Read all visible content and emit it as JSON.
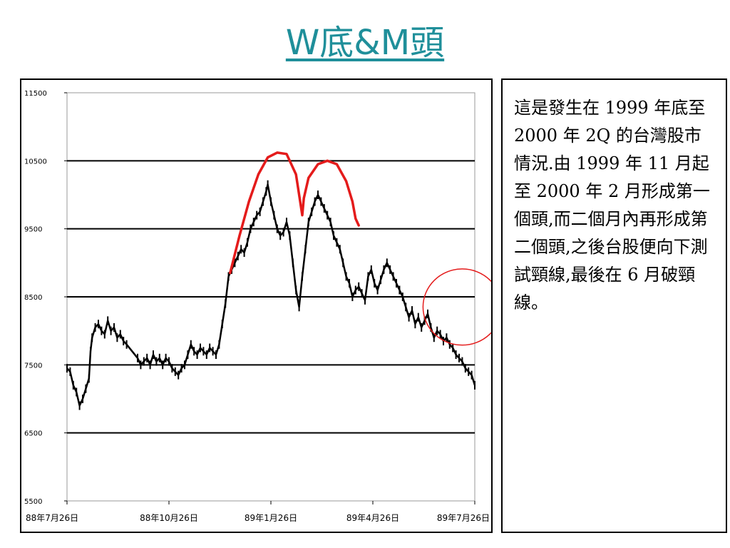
{
  "slide": {
    "title": "W底&M頭"
  },
  "description": {
    "text": "這是發生在 1999 年底至 2000 年 2Q 的台灣股市情況.由 1999 年 11 月起至 2000 年 2 月形成第一個頭,而二個月內再形成第二個頭,之後台股便向下測試頸線,最後在 6 月破頸線。"
  },
  "chart_data": {
    "type": "line",
    "title": "",
    "xlabel": "",
    "ylabel": "",
    "ylim": [
      5500,
      11500
    ],
    "yticks": [
      5500,
      6500,
      7500,
      8500,
      9500,
      10500,
      11500
    ],
    "ytick_labels": [
      "5500",
      "6500",
      "7500",
      "8500",
      "9500",
      "10500",
      "11500"
    ],
    "xticks": [
      0,
      65,
      130,
      195,
      260
    ],
    "xtick_labels": [
      "88年7月26日",
      "88年10月26日",
      "89年1月26日",
      "89年4月26日",
      "89年7月26日"
    ],
    "grid": "horizontal",
    "series": [
      {
        "name": "",
        "color": "#000000",
        "points": [
          [
            0,
            7450
          ],
          [
            2,
            7400
          ],
          [
            4,
            7200
          ],
          [
            6,
            7100
          ],
          [
            8,
            6900
          ],
          [
            10,
            7000
          ],
          [
            12,
            7150
          ],
          [
            14,
            7300
          ],
          [
            15,
            7700
          ],
          [
            16,
            7900
          ],
          [
            18,
            8050
          ],
          [
            20,
            8100
          ],
          [
            22,
            8000
          ],
          [
            24,
            7950
          ],
          [
            26,
            8150
          ],
          [
            28,
            8000
          ],
          [
            30,
            8050
          ],
          [
            32,
            7900
          ],
          [
            34,
            7950
          ],
          [
            36,
            7850
          ],
          [
            38,
            7800
          ],
          [
            45,
            7600
          ],
          [
            47,
            7500
          ],
          [
            49,
            7550
          ],
          [
            51,
            7600
          ],
          [
            53,
            7500
          ],
          [
            55,
            7650
          ],
          [
            57,
            7550
          ],
          [
            59,
            7600
          ],
          [
            61,
            7500
          ],
          [
            63,
            7600
          ],
          [
            65,
            7550
          ],
          [
            67,
            7450
          ],
          [
            69,
            7400
          ],
          [
            71,
            7350
          ],
          [
            73,
            7450
          ],
          [
            75,
            7500
          ],
          [
            77,
            7650
          ],
          [
            79,
            7800
          ],
          [
            81,
            7700
          ],
          [
            83,
            7650
          ],
          [
            85,
            7750
          ],
          [
            87,
            7700
          ],
          [
            89,
            7650
          ],
          [
            91,
            7750
          ],
          [
            93,
            7700
          ],
          [
            95,
            7650
          ],
          [
            97,
            7800
          ],
          [
            99,
            8100
          ],
          [
            101,
            8400
          ],
          [
            103,
            8800
          ],
          [
            105,
            8900
          ],
          [
            107,
            9000
          ],
          [
            109,
            9100
          ],
          [
            111,
            9200
          ],
          [
            113,
            9150
          ],
          [
            115,
            9300
          ],
          [
            117,
            9500
          ],
          [
            119,
            9600
          ],
          [
            121,
            9700
          ],
          [
            123,
            9750
          ],
          [
            125,
            9900
          ],
          [
            127,
            10050
          ],
          [
            128,
            10150
          ],
          [
            130,
            9900
          ],
          [
            132,
            9700
          ],
          [
            134,
            9500
          ],
          [
            136,
            9400
          ],
          [
            138,
            9450
          ],
          [
            140,
            9600
          ],
          [
            142,
            9400
          ],
          [
            144,
            9000
          ],
          [
            146,
            8600
          ],
          [
            148,
            8350
          ],
          [
            150,
            8800
          ],
          [
            152,
            9200
          ],
          [
            154,
            9600
          ],
          [
            156,
            9750
          ],
          [
            158,
            9900
          ],
          [
            160,
            10000
          ],
          [
            162,
            9900
          ],
          [
            164,
            9800
          ],
          [
            166,
            9700
          ],
          [
            168,
            9600
          ],
          [
            170,
            9400
          ],
          [
            172,
            9300
          ],
          [
            174,
            9200
          ],
          [
            176,
            9000
          ],
          [
            178,
            8800
          ],
          [
            180,
            8700
          ],
          [
            182,
            8500
          ],
          [
            184,
            8600
          ],
          [
            186,
            8650
          ],
          [
            188,
            8550
          ],
          [
            190,
            8450
          ],
          [
            192,
            8800
          ],
          [
            194,
            8900
          ],
          [
            196,
            8700
          ],
          [
            198,
            8600
          ],
          [
            200,
            8750
          ],
          [
            202,
            8900
          ],
          [
            204,
            9000
          ],
          [
            206,
            8900
          ],
          [
            208,
            8800
          ],
          [
            210,
            8700
          ],
          [
            212,
            8600
          ],
          [
            214,
            8500
          ],
          [
            216,
            8350
          ],
          [
            218,
            8200
          ],
          [
            220,
            8300
          ],
          [
            222,
            8100
          ],
          [
            224,
            8200
          ],
          [
            226,
            8050
          ],
          [
            228,
            8150
          ],
          [
            230,
            8250
          ],
          [
            232,
            8050
          ],
          [
            234,
            7900
          ],
          [
            236,
            8000
          ],
          [
            238,
            7950
          ],
          [
            240,
            7850
          ],
          [
            242,
            7900
          ],
          [
            244,
            7800
          ],
          [
            246,
            7750
          ],
          [
            248,
            7650
          ],
          [
            250,
            7600
          ],
          [
            252,
            7550
          ],
          [
            254,
            7450
          ],
          [
            256,
            7400
          ],
          [
            258,
            7350
          ],
          [
            260,
            7200
          ]
        ]
      }
    ],
    "annotations": {
      "red_m_curve": {
        "color": "#e41b1b",
        "points": [
          [
            104,
            8850
          ],
          [
            110,
            9400
          ],
          [
            116,
            9900
          ],
          [
            122,
            10300
          ],
          [
            128,
            10550
          ],
          [
            134,
            10620
          ],
          [
            140,
            10600
          ],
          [
            146,
            10300
          ],
          [
            148,
            10000
          ],
          [
            150,
            9700
          ],
          [
            151,
            9950
          ],
          [
            154,
            10250
          ],
          [
            160,
            10450
          ],
          [
            166,
            10500
          ],
          [
            172,
            10450
          ],
          [
            178,
            10200
          ],
          [
            182,
            9900
          ],
          [
            184,
            9650
          ],
          [
            186,
            9550
          ]
        ]
      },
      "red_circle": {
        "color": "#e41b1b",
        "center": [
          252,
          8350
        ],
        "rx_days": 25,
        "ry_value": 560
      }
    }
  }
}
